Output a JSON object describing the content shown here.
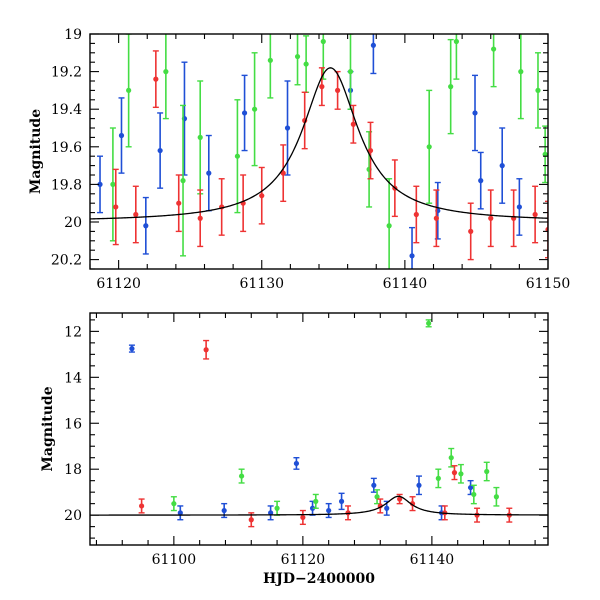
{
  "colors": {
    "blue": "#1f4fd6",
    "green": "#44dd44",
    "red": "#ee3333",
    "model": "#000000"
  },
  "chart_data": [
    {
      "type": "scatter",
      "title": "",
      "xlabel": "",
      "ylabel": "Magnitude",
      "xlim": [
        61118,
        61150
      ],
      "ylim": [
        20.25,
        19.0
      ],
      "y_inverted": true,
      "grid": false,
      "x_ticks": [
        "61120",
        "61130",
        "61140",
        "61150"
      ],
      "y_ticks": [
        "19",
        "19.2",
        "19.4",
        "19.6",
        "19.8",
        "20",
        "20.2"
      ],
      "model_curve": {
        "baseline_mag": 20.0,
        "peak_mag": 19.18,
        "peak_x": 61134.8,
        "width_days": 2.4,
        "color": "#000000"
      },
      "series": [
        {
          "color": "blue",
          "points": [
            [
              61118.7,
              19.8,
              0.15
            ],
            [
              61120.2,
              19.54,
              0.2
            ],
            [
              61121.9,
              20.02,
              0.15
            ],
            [
              61122.9,
              19.62,
              0.2
            ],
            [
              61124.6,
              19.45,
              0.3
            ],
            [
              61126.3,
              19.74,
              0.2
            ],
            [
              61128.8,
              19.42,
              0.2
            ],
            [
              61131.8,
              19.5,
              0.25
            ],
            [
              61136.2,
              19.3,
              0.1
            ],
            [
              61137.8,
              19.06,
              0.15
            ],
            [
              61140.5,
              20.18,
              0.15
            ],
            [
              61142.3,
              19.94,
              0.15
            ],
            [
              61144.9,
              19.42,
              0.2
            ],
            [
              61145.3,
              19.78,
              0.15
            ],
            [
              61146.8,
              19.7,
              0.2
            ],
            [
              61148.0,
              19.92,
              0.15
            ]
          ]
        },
        {
          "color": "green",
          "points": [
            [
              61119.6,
              19.8,
              0.3
            ],
            [
              61120.7,
              19.3,
              0.3
            ],
            [
              61123.3,
              19.2,
              0.25
            ],
            [
              61124.5,
              19.78,
              0.4
            ],
            [
              61125.7,
              19.55,
              0.3
            ],
            [
              61128.3,
              19.65,
              0.3
            ],
            [
              61129.5,
              19.4,
              0.3
            ],
            [
              61130.6,
              19.14,
              0.2
            ],
            [
              61132.5,
              19.12,
              0.15
            ],
            [
              61133.1,
              19.16,
              0.15
            ],
            [
              61134.3,
              19.04,
              0.2
            ],
            [
              61136.2,
              19.2,
              0.2
            ],
            [
              61137.5,
              19.72,
              0.2
            ],
            [
              61138.9,
              20.02,
              0.25
            ],
            [
              61141.7,
              19.6,
              0.3
            ],
            [
              61143.2,
              19.28,
              0.25
            ],
            [
              61143.6,
              19.04,
              0.2
            ],
            [
              61146.2,
              19.08,
              0.2
            ],
            [
              61148.1,
              19.2,
              0.25
            ],
            [
              61149.3,
              19.3,
              0.2
            ],
            [
              61149.8,
              19.64,
              0.15
            ]
          ]
        },
        {
          "color": "red",
          "points": [
            [
              61119.8,
              19.92,
              0.2
            ],
            [
              61121.2,
              19.96,
              0.15
            ],
            [
              61122.6,
              19.24,
              0.15
            ],
            [
              61124.2,
              19.9,
              0.15
            ],
            [
              61125.7,
              19.98,
              0.15
            ],
            [
              61127.2,
              19.92,
              0.15
            ],
            [
              61128.7,
              19.9,
              0.15
            ],
            [
              61130.0,
              19.86,
              0.15
            ],
            [
              61131.5,
              19.74,
              0.15
            ],
            [
              61133.0,
              19.46,
              0.15
            ],
            [
              61134.2,
              19.28,
              0.1
            ],
            [
              61135.3,
              19.3,
              0.1
            ],
            [
              61136.4,
              19.48,
              0.1
            ],
            [
              61137.6,
              19.62,
              0.15
            ],
            [
              61139.3,
              19.82,
              0.15
            ],
            [
              61140.8,
              19.96,
              0.15
            ],
            [
              61142.2,
              19.98,
              0.15
            ],
            [
              61144.6,
              20.05,
              0.15
            ],
            [
              61146.0,
              19.98,
              0.15
            ],
            [
              61147.6,
              19.98,
              0.15
            ],
            [
              61149.1,
              19.96,
              0.15
            ],
            [
              61150.0,
              20.04,
              0.15
            ]
          ]
        }
      ]
    },
    {
      "type": "scatter",
      "title": "",
      "xlabel": "HJD−2400000",
      "ylabel": "Magnitude",
      "xlim": [
        61087,
        61158
      ],
      "ylim": [
        21.3,
        11.2
      ],
      "y_inverted": true,
      "grid": false,
      "x_ticks": [
        "61100",
        "61120",
        "61140"
      ],
      "y_ticks": [
        "12",
        "14",
        "16",
        "18",
        "20"
      ],
      "model_curve": {
        "baseline_mag": 20.0,
        "peak_mag": 19.18,
        "peak_x": 61134.8,
        "width_days": 2.4,
        "color": "#000000"
      },
      "series": [
        {
          "color": "blue",
          "points": [
            [
              61093.5,
              12.75,
              0.15
            ],
            [
              61101.0,
              19.9,
              0.3
            ],
            [
              61107.8,
              19.8,
              0.3
            ],
            [
              61115.0,
              19.9,
              0.3
            ],
            [
              61119.0,
              17.75,
              0.25
            ],
            [
              61121.5,
              19.7,
              0.3
            ],
            [
              61124.0,
              19.8,
              0.3
            ],
            [
              61126.0,
              19.4,
              0.35
            ],
            [
              61131.0,
              18.7,
              0.3
            ],
            [
              61133.0,
              19.7,
              0.3
            ],
            [
              61138.0,
              18.7,
              0.4
            ],
            [
              61141.5,
              19.9,
              0.3
            ],
            [
              61146.0,
              18.8,
              0.3
            ]
          ]
        },
        {
          "color": "green",
          "points": [
            [
              61100.0,
              19.5,
              0.3
            ],
            [
              61110.5,
              18.3,
              0.3
            ],
            [
              61116.0,
              19.7,
              0.3
            ],
            [
              61122.0,
              19.4,
              0.3
            ],
            [
              61131.5,
              19.2,
              0.3
            ],
            [
              61139.5,
              11.65,
              0.15
            ],
            [
              61141.0,
              18.4,
              0.4
            ],
            [
              61143.0,
              17.5,
              0.4
            ],
            [
              61144.5,
              18.2,
              0.4
            ],
            [
              61146.5,
              19.1,
              0.4
            ],
            [
              61148.5,
              18.1,
              0.4
            ],
            [
              61150.0,
              19.2,
              0.4
            ]
          ]
        },
        {
          "color": "red",
          "points": [
            [
              61095.0,
              19.6,
              0.3
            ],
            [
              61105.0,
              12.8,
              0.4
            ],
            [
              61112.0,
              20.2,
              0.3
            ],
            [
              61120.0,
              20.1,
              0.3
            ],
            [
              61127.0,
              19.9,
              0.3
            ],
            [
              61132.0,
              19.6,
              0.3
            ],
            [
              61135.0,
              19.3,
              0.2
            ],
            [
              61137.0,
              19.5,
              0.3
            ],
            [
              61142.0,
              19.9,
              0.3
            ],
            [
              61143.5,
              18.15,
              0.3
            ],
            [
              61147.0,
              20.0,
              0.3
            ],
            [
              61152.0,
              20.0,
              0.3
            ]
          ]
        }
      ]
    }
  ]
}
